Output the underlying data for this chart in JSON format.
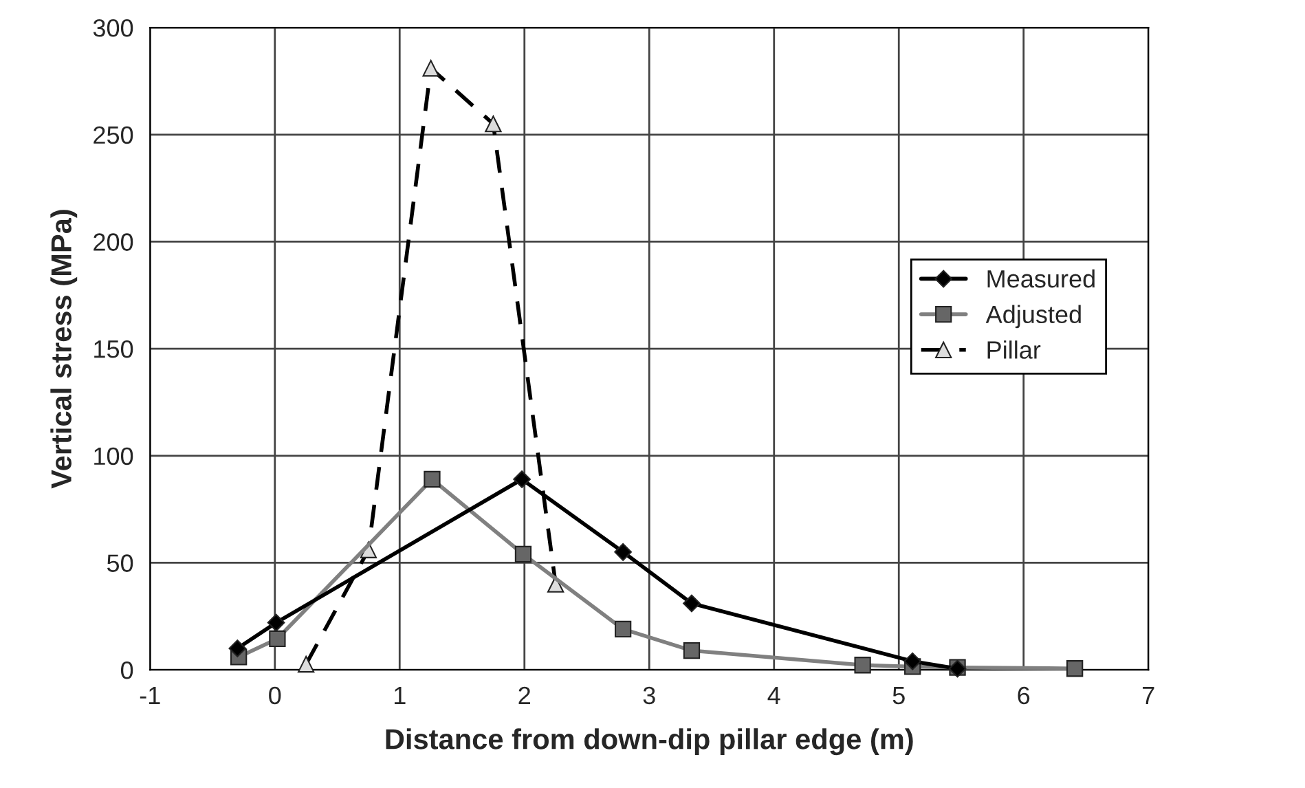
{
  "chart_data": {
    "type": "line",
    "xlabel": "Distance from down-dip pillar edge (m)",
    "ylabel": "Vertical stress (MPa)",
    "xlim": [
      -1,
      7
    ],
    "xticks": [
      -1,
      0,
      1,
      2,
      3,
      4,
      5,
      6,
      7
    ],
    "ylim": [
      0,
      300
    ],
    "yticks": [
      0,
      50,
      100,
      150,
      200,
      250,
      300
    ],
    "grid": true,
    "legend": "right",
    "series": [
      {
        "name": "Measured",
        "color": "#000000",
        "marker": "diamond",
        "line_style": "solid",
        "x": [
          -0.3,
          0.01,
          1.98,
          2.79,
          3.34,
          5.11,
          5.47
        ],
        "values": [
          10,
          22,
          89,
          55,
          31,
          4,
          0.5
        ]
      },
      {
        "name": "Adjusted",
        "color": "#808080",
        "marker": "square",
        "line_style": "solid",
        "x": [
          -0.29,
          0.02,
          1.26,
          1.99,
          2.79,
          3.34,
          4.71,
          5.11,
          5.47,
          6.41
        ],
        "values": [
          6,
          14.5,
          89,
          54,
          19,
          9,
          2.2,
          1.5,
          1.1,
          0.6
        ]
      },
      {
        "name": "Pillar",
        "color": "#000000",
        "marker": "triangle",
        "line_style": "dashed",
        "x": [
          0.25,
          0.75,
          1.25,
          1.75,
          2.25
        ],
        "values": [
          2.6,
          56,
          281,
          255,
          40
        ]
      }
    ]
  }
}
